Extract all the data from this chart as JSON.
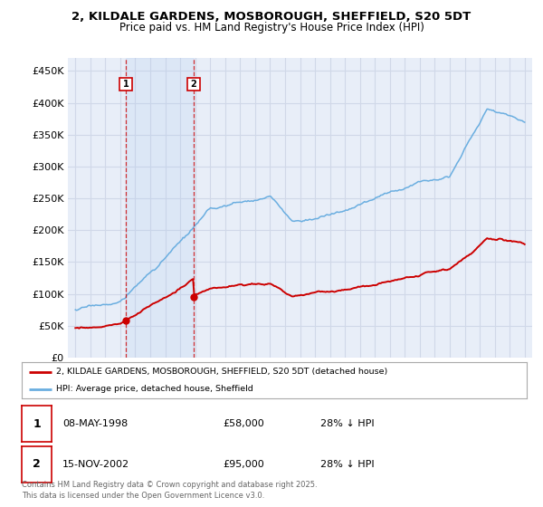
{
  "title_line1": "2, KILDALE GARDENS, MOSBOROUGH, SHEFFIELD, S20 5DT",
  "title_line2": "Price paid vs. HM Land Registry's House Price Index (HPI)",
  "ylim": [
    0,
    470000
  ],
  "yticks": [
    0,
    50000,
    100000,
    150000,
    200000,
    250000,
    300000,
    350000,
    400000,
    450000
  ],
  "ytick_labels": [
    "£0",
    "£50K",
    "£100K",
    "£150K",
    "£200K",
    "£250K",
    "£300K",
    "£350K",
    "£400K",
    "£450K"
  ],
  "background_color": "#ffffff",
  "plot_bg_color": "#e8eef8",
  "grid_color": "#d0d8e8",
  "hpi_color": "#6aaee0",
  "price_color": "#cc0000",
  "sale1_year": 1998.37,
  "sale1_price": 58000,
  "sale2_year": 2002.87,
  "sale2_price": 95000,
  "legend_entry1": "2, KILDALE GARDENS, MOSBOROUGH, SHEFFIELD, S20 5DT (detached house)",
  "legend_entry2": "HPI: Average price, detached house, Sheffield",
  "table_row1": [
    "1",
    "08-MAY-1998",
    "£58,000",
    "28% ↓ HPI"
  ],
  "table_row2": [
    "2",
    "15-NOV-2002",
    "£95,000",
    "28% ↓ HPI"
  ],
  "footnote": "Contains HM Land Registry data © Crown copyright and database right 2025.\nThis data is licensed under the Open Government Licence v3.0."
}
